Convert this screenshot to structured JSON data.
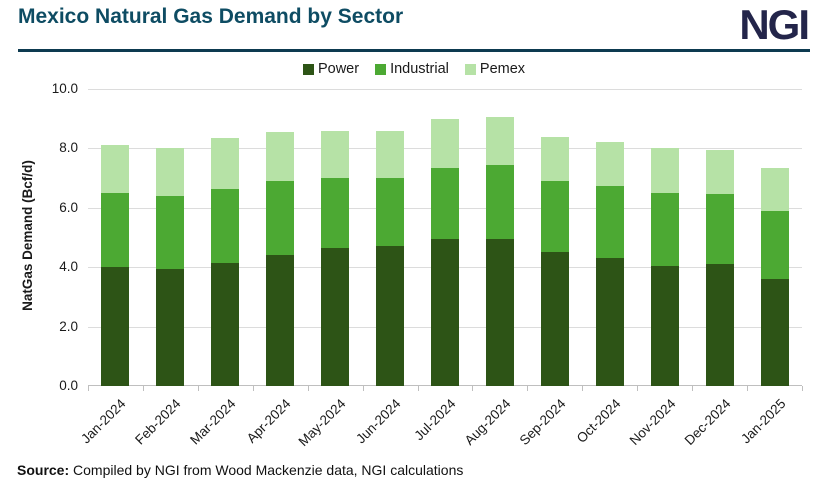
{
  "header": {
    "title": "Mexico Natural Gas Demand by Sector",
    "logo": "NGI"
  },
  "colors": {
    "title": "#0e4c63",
    "logo": "#23254a",
    "divider": "#0d3a50",
    "grid": "#dcdcdc",
    "axis": "#bfbfbf"
  },
  "chart_data": {
    "type": "bar",
    "stacked": true,
    "title": "Mexico Natural Gas Demand by Sector",
    "xlabel": "",
    "ylabel": "NatGas Demand (Bcf/d)",
    "ylim": [
      0,
      10
    ],
    "yticks": [
      0,
      2,
      4,
      6,
      8,
      10
    ],
    "ytick_labels": [
      "0.0",
      "2.0",
      "4.0",
      "6.0",
      "8.0",
      "10.0"
    ],
    "grid": true,
    "legend_position": "top",
    "categories": [
      "Jan-2024",
      "Feb-2024",
      "Mar-2024",
      "Apr-2024",
      "May-2024",
      "Jun-2024",
      "Jul-2024",
      "Aug-2024",
      "Sep-2024",
      "Oct-2024",
      "Nov-2024",
      "Dec-2024",
      "Jan-2025"
    ],
    "series": [
      {
        "name": "Power",
        "color": "#2d5416",
        "values": [
          4.0,
          3.95,
          4.15,
          4.4,
          4.65,
          4.7,
          4.95,
          4.95,
          4.5,
          4.3,
          4.05,
          4.1,
          3.6
        ]
      },
      {
        "name": "Industrial",
        "color": "#4ca933",
        "values": [
          2.5,
          2.45,
          2.5,
          2.5,
          2.35,
          2.3,
          2.4,
          2.5,
          2.4,
          2.45,
          2.45,
          2.35,
          2.3
        ]
      },
      {
        "name": "Pemex",
        "color": "#b6e2a6",
        "values": [
          1.6,
          1.6,
          1.7,
          1.65,
          1.6,
          1.6,
          1.65,
          1.6,
          1.5,
          1.45,
          1.5,
          1.5,
          1.45
        ]
      }
    ],
    "totals": [
      8.1,
      8.0,
      8.35,
      8.55,
      8.6,
      8.6,
      9.0,
      9.05,
      8.4,
      8.2,
      8.0,
      7.95,
      7.35
    ]
  },
  "footer": {
    "source_label": "Source:",
    "source_text": " Compiled by NGI from Wood Mackenzie data, NGI calculations"
  }
}
